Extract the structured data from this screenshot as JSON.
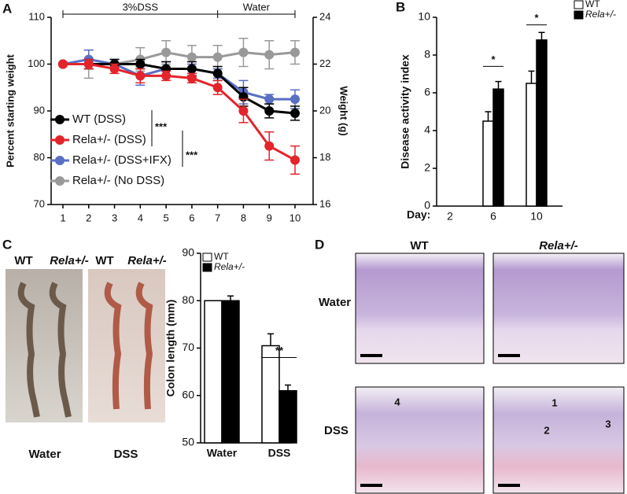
{
  "panel_labels": [
    "A",
    "B",
    "C",
    "D"
  ],
  "chart_data": [
    {
      "type": "line",
      "x": [
        1,
        2,
        3,
        4,
        5,
        6,
        7,
        8,
        9,
        10
      ],
      "xlim": [
        1,
        10
      ],
      "xticks": [
        1,
        2,
        3,
        4,
        5,
        6,
        7,
        8,
        9,
        10
      ],
      "ylabel": "Percent starting weight",
      "ylim": [
        70,
        110
      ],
      "yticks": [
        70,
        80,
        90,
        100,
        110
      ],
      "y2label": "Weight (g)",
      "y2lim": [
        16,
        24
      ],
      "y2ticks": [
        16,
        18,
        20,
        22,
        24
      ],
      "annotations": [
        "3%DSS",
        "Water",
        "***",
        "***"
      ],
      "series": [
        {
          "name": "WT (DSS)",
          "color": "#000000",
          "values": [
            100,
            100,
            100,
            100,
            99,
            99,
            98,
            93,
            90,
            89.5
          ],
          "errors": [
            0,
            1,
            1,
            1,
            1.5,
            1.5,
            1.5,
            2,
            1.5,
            1.5
          ]
        },
        {
          "name": "Rela+/- (DSS)",
          "color": "#e3242b",
          "values": [
            100,
            100,
            99,
            97.5,
            97.5,
            97,
            95,
            90,
            82.5,
            79.5
          ],
          "errors": [
            0,
            1,
            1,
            1.5,
            1,
            1,
            1.5,
            2.5,
            3,
            3
          ]
        },
        {
          "name": "Rela+/- (DSS+IFX)",
          "color": "#5a6ec4",
          "values": [
            100,
            101,
            100,
            97.5,
            99,
            99,
            98,
            94,
            92.5,
            92.5
          ],
          "errors": [
            0,
            2,
            1,
            2,
            1.5,
            1,
            1,
            2.5,
            1,
            2
          ]
        },
        {
          "name": "Rela+/- (No DSS)",
          "color": "#999999",
          "values": [
            100,
            100,
            100,
            101,
            102.5,
            101.5,
            101.5,
            102.5,
            102,
            102.5
          ],
          "errors": [
            0,
            3,
            1,
            2.5,
            2.5,
            2.5,
            2.5,
            3,
            3,
            2.5
          ]
        }
      ]
    },
    {
      "type": "bar",
      "xlabel": "Day:",
      "categories": [
        "2",
        "6",
        "10"
      ],
      "ylabel": "Disease activity index",
      "ylim": [
        0,
        10
      ],
      "yticks": [
        0,
        2,
        4,
        6,
        8,
        10
      ],
      "annotations": [
        "*",
        "*"
      ],
      "series": [
        {
          "name": "WT",
          "color": "#ffffff",
          "values": [
            0,
            4.5,
            6.5
          ],
          "errors": [
            0,
            0.5,
            0.65
          ]
        },
        {
          "name": "Rela+/-",
          "color": "#000000",
          "values": [
            0,
            6.2,
            8.8
          ],
          "errors": [
            0,
            0.4,
            0.4
          ]
        }
      ]
    },
    {
      "type": "bar",
      "categories": [
        "Water",
        "DSS"
      ],
      "ylabel": "Colon length (mm)",
      "ylim": [
        50,
        90
      ],
      "yticks": [
        50,
        60,
        70,
        80,
        90
      ],
      "annotations": [
        "**"
      ],
      "series": [
        {
          "name": "WT",
          "color": "#ffffff",
          "values": [
            80,
            70.5
          ],
          "errors": [
            0,
            2.5
          ]
        },
        {
          "name": "Rela+/-",
          "color": "#000000",
          "values": [
            80,
            61
          ],
          "errors": [
            1,
            1.2
          ]
        }
      ]
    }
  ],
  "colon_photos": {
    "labels": [
      "WT",
      "Rela+/-",
      "WT",
      "Rela+/-"
    ],
    "conditions": [
      "Water",
      "DSS"
    ]
  },
  "histology": {
    "columns": [
      "WT",
      "Rela+/-"
    ],
    "rows": [
      "Water",
      "DSS"
    ],
    "markers": [
      "4",
      "1",
      "2",
      "3"
    ]
  }
}
